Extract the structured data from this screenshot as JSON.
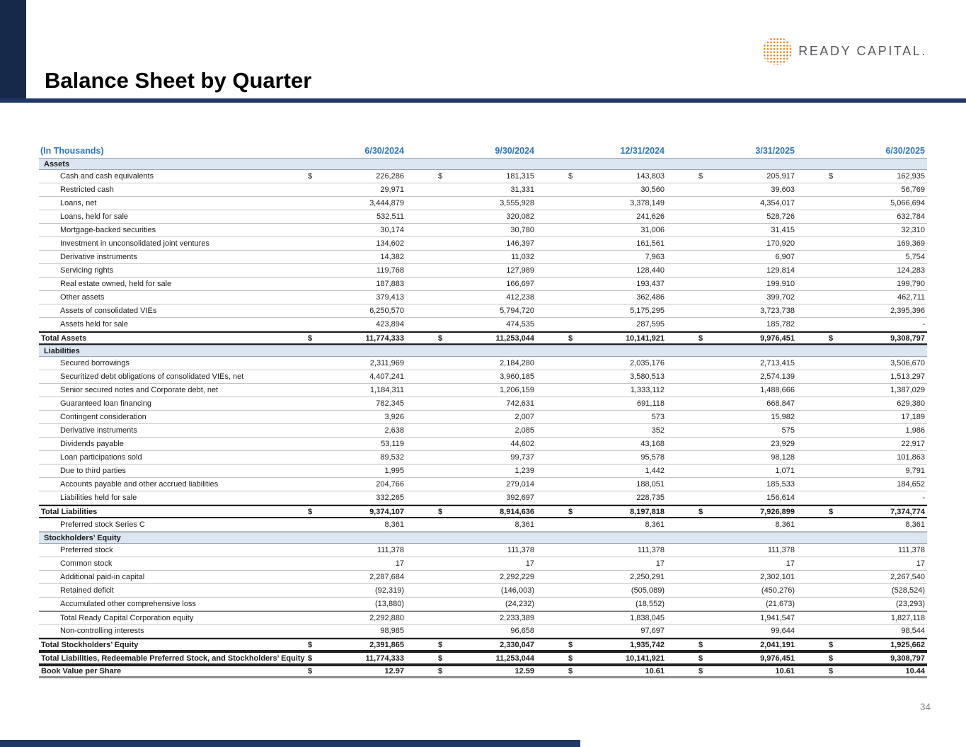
{
  "page": {
    "title": "Balance Sheet by Quarter",
    "page_number": "34"
  },
  "logo": {
    "brand": "READY CAPITAL.",
    "icon": "dotted-globe-icon"
  },
  "colors": {
    "accent_navy": "#1F3864",
    "corner_stripe_navy": "#16294B",
    "header_blue": "#2E75B6",
    "section_band_blue": "#DCE6F1",
    "logo_orange": "#E8861B",
    "page_number_gray": "#8A8A8A"
  },
  "table": {
    "unit_label": "(In Thousands)",
    "currency_symbol": "$",
    "columns": [
      "6/30/2024",
      "9/30/2024",
      "12/31/2024",
      "3/31/2025",
      "6/30/2025"
    ],
    "rows": [
      {
        "type": "section",
        "label": "Assets"
      },
      {
        "type": "data",
        "label": "Cash and cash equivalents",
        "dollar": true,
        "values": [
          "226,286",
          "181,315",
          "143,803",
          "205,917",
          "162,935"
        ]
      },
      {
        "type": "data",
        "label": "Restricted cash",
        "values": [
          "29,971",
          "31,331",
          "30,560",
          "39,603",
          "56,769"
        ]
      },
      {
        "type": "data",
        "label": "Loans, net",
        "values": [
          "3,444,879",
          "3,555,928",
          "3,378,149",
          "4,354,017",
          "5,066,694"
        ]
      },
      {
        "type": "data",
        "label": "Loans, held for sale",
        "values": [
          "532,511",
          "320,082",
          "241,626",
          "528,726",
          "632,784"
        ]
      },
      {
        "type": "data",
        "label": "Mortgage-backed securities",
        "values": [
          "30,174",
          "30,780",
          "31,006",
          "31,415",
          "32,310"
        ]
      },
      {
        "type": "data",
        "label": "Investment in unconsolidated joint ventures",
        "values": [
          "134,602",
          "146,397",
          "161,561",
          "170,920",
          "169,369"
        ]
      },
      {
        "type": "data",
        "label": "Derivative instruments",
        "values": [
          "14,382",
          "11,032",
          "7,963",
          "6,907",
          "5,754"
        ]
      },
      {
        "type": "data",
        "label": "Servicing rights",
        "values": [
          "119,768",
          "127,989",
          "128,440",
          "129,814",
          "124,283"
        ]
      },
      {
        "type": "data",
        "label": "Real estate owned, held for sale",
        "values": [
          "187,883",
          "166,697",
          "193,437",
          "199,910",
          "199,790"
        ]
      },
      {
        "type": "data",
        "label": "Other assets",
        "values": [
          "379,413",
          "412,238",
          "362,486",
          "399,702",
          "462,711"
        ]
      },
      {
        "type": "data",
        "label": "Assets of consolidated VIEs",
        "values": [
          "6,250,570",
          "5,794,720",
          "5,175,295",
          "3,723,738",
          "2,395,396"
        ]
      },
      {
        "type": "data",
        "label": "Assets held for sale",
        "values": [
          "423,894",
          "474,535",
          "287,595",
          "185,782",
          "-"
        ]
      },
      {
        "type": "total",
        "label": "Total Assets",
        "dollar": true,
        "values": [
          "11,774,333",
          "11,253,044",
          "10,141,921",
          "9,976,451",
          "9,308,797"
        ]
      },
      {
        "type": "section",
        "label": "Liabilities"
      },
      {
        "type": "data",
        "label": "Secured borrowings",
        "values": [
          "2,311,969",
          "2,184,280",
          "2,035,176",
          "2,713,415",
          "3,506,670"
        ]
      },
      {
        "type": "data",
        "label": "Securitized debt obligations of consolidated VIEs, net",
        "values": [
          "4,407,241",
          "3,960,185",
          "3,580,513",
          "2,574,139",
          "1,513,297"
        ]
      },
      {
        "type": "data",
        "label": "Senior secured notes and Corporate debt, net",
        "values": [
          "1,184,311",
          "1,206,159",
          "1,333,112",
          "1,488,666",
          "1,387,029"
        ]
      },
      {
        "type": "data",
        "label": "Guaranteed loan financing",
        "values": [
          "782,345",
          "742,631",
          "691,118",
          "668,847",
          "629,380"
        ]
      },
      {
        "type": "data",
        "label": "Contingent consideration",
        "values": [
          "3,926",
          "2,007",
          "573",
          "15,982",
          "17,189"
        ]
      },
      {
        "type": "data",
        "label": "Derivative instruments",
        "values": [
          "2,638",
          "2,085",
          "352",
          "575",
          "1,986"
        ]
      },
      {
        "type": "data",
        "label": "Dividends payable",
        "values": [
          "53,119",
          "44,602",
          "43,168",
          "23,929",
          "22,917"
        ]
      },
      {
        "type": "data",
        "label": "Loan participations sold",
        "values": [
          "89,532",
          "99,737",
          "95,578",
          "98,128",
          "101,863"
        ]
      },
      {
        "type": "data",
        "label": "Due to third parties",
        "values": [
          "1,995",
          "1,239",
          "1,442",
          "1,071",
          "9,791"
        ]
      },
      {
        "type": "data",
        "label": "Accounts payable and other accrued liabilities",
        "values": [
          "204,766",
          "279,014",
          "188,051",
          "185,533",
          "184,652"
        ]
      },
      {
        "type": "data",
        "label": "Liabilities held for sale",
        "values": [
          "332,265",
          "392,697",
          "228,735",
          "156,614",
          "-"
        ]
      },
      {
        "type": "total",
        "label": "Total Liabilities",
        "dollar": true,
        "values": [
          "9,374,107",
          "8,914,636",
          "8,197,818",
          "7,926,899",
          "7,374,774"
        ]
      },
      {
        "type": "data",
        "label": "Preferred stock Series C",
        "values": [
          "8,361",
          "8,361",
          "8,361",
          "8,361",
          "8,361"
        ]
      },
      {
        "type": "section",
        "label": "Stockholders’ Equity"
      },
      {
        "type": "data",
        "label": "Preferred stock",
        "values": [
          "111,378",
          "111,378",
          "111,378",
          "111,378",
          "111,378"
        ]
      },
      {
        "type": "data",
        "label": "Common stock",
        "values": [
          "17",
          "17",
          "17",
          "17",
          "17"
        ]
      },
      {
        "type": "data",
        "label": "Additional paid-in capital",
        "values": [
          "2,287,684",
          "2,292,229",
          "2,250,291",
          "2,302,101",
          "2,267,540"
        ]
      },
      {
        "type": "data",
        "label": "Retained deficit",
        "values": [
          "(92,319)",
          "(146,003)",
          "(505,089)",
          "(450,276)",
          "(528,524)"
        ]
      },
      {
        "type": "data",
        "label": "Accumulated other comprehensive loss",
        "values": [
          "(13,880)",
          "(24,232)",
          "(18,552)",
          "(21,673)",
          "(23,293)"
        ]
      },
      {
        "type": "data",
        "label": "Total Ready Capital Corporation equity",
        "rule": "top",
        "values": [
          "2,292,880",
          "2,233,389",
          "1,838,045",
          "1,941,547",
          "1,827,118"
        ]
      },
      {
        "type": "data",
        "label": "Non-controlling interests",
        "values": [
          "98,985",
          "96,658",
          "97,697",
          "99,644",
          "98,544"
        ]
      },
      {
        "type": "total",
        "label": "Total Stockholders’ Equity",
        "dollar": true,
        "values": [
          "2,391,865",
          "2,330,047",
          "1,935,742",
          "2,041,191",
          "1,925,662"
        ]
      },
      {
        "type": "total",
        "label": "Total Liabilities, Redeemable Preferred Stock, and Stockholders’ Equity",
        "dollar": true,
        "values": [
          "11,774,333",
          "11,253,044",
          "10,141,921",
          "9,976,451",
          "9,308,797"
        ]
      },
      {
        "type": "total",
        "label": "Book Value per Share",
        "dollar": true,
        "last": true,
        "values": [
          "12.97",
          "12.59",
          "10.61",
          "10.61",
          "10.44"
        ]
      }
    ]
  }
}
